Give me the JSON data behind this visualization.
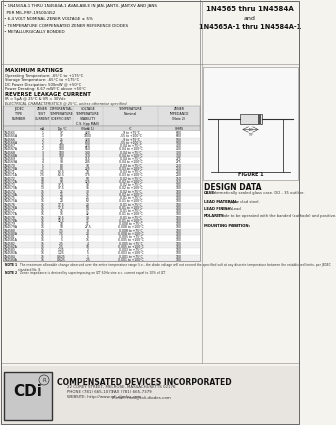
{
  "bg_color": "#f5f3ee",
  "title_left_lines": [
    "• 1N4565A-1 THRU 1N4584A-1 AVAILABLE IN JAN, JANTX, JANTXV AND JANS",
    "  PER MIL-PRF-19500/452",
    "• 6.4 VOLT NOMINAL ZENER VOLTAGE ± 5%",
    "• TEMPERATURE COMPENSATED ZENER REFERENCE DIODES",
    "• METALLURGICALLY BONDED"
  ],
  "title_right_line1": "1N4565 thru 1N4584A",
  "title_right_line2": "and",
  "title_right_line3": "1N4565A-1 thru 1N4584A-1",
  "max_ratings_title": "MAXIMUM RATINGS",
  "max_ratings_lines": [
    "Operating Temperature: -65°C to +175°C",
    "Storage Temperature: -65°C to +175°C",
    "DC Power Dissipation: 500mW @ +50°C",
    "Power Derating: 6.67 mW/°C above +50°C"
  ],
  "reverse_leakage_title": "REVERSE LEAKAGE CURRENT",
  "reverse_leakage_line": "IR = 5µA @ 25°C & VR = 30Vdc",
  "elec_char_title": "ELECTRICAL CHARACTERISTICS @ 25°C, unless otherwise specified.",
  "col_headers_row1": [
    "JEDEC\nTYPE\nNUMBER",
    "ZENER\nTEST\nCURRENT",
    "DIFFERENTIAL\nTEMPERATURE\nCOEFFICIENT",
    "VOLTAGE\nTEMPERATURE\nSTABILITY\nC.S. f(pp MAX)\n(Note 1)",
    "TEMPERATURE\nNominal",
    "ZENER IMPEDANCE\n(Note 2)"
  ],
  "col_headers_row2": [
    "",
    "mA",
    "Typ °C",
    "°C",
    "°C",
    "OHMS"
  ],
  "table_rows": [
    [
      "1N4565\n1N4565A",
      "1\n1",
      "37\n37",
      "420\n1000",
      "-9 to +75°C\n-55 to +100°C",
      "600\n600"
    ],
    [
      "1N4566\n1N4566A",
      "2\n2",
      "25\n25",
      "320\n800",
      "-9 to +75°C\n-55 to +100°C",
      "500\n500"
    ],
    [
      "1N4567\n1N4567A",
      "2\n2",
      "100\n100",
      "220\n550",
      "0.04 to +75°C\n0.04 to +100°C",
      "400\n400"
    ],
    [
      "1N4568\n1N4568A",
      "3\n3",
      "100\n100",
      "140\n350",
      "0.04 to +75°C\n0.04 to +100°C",
      "300\n300"
    ],
    [
      "1N4569\n1N4569A",
      "4\n4",
      "90\n90",
      "115\n285",
      "0.04 to +75°C\n0.04 to +100°C",
      "275\n275"
    ],
    [
      "1N4570\n1N4570A",
      "5\n5",
      "80\n80",
      "90\n225",
      "0.03 to +75°C\n0.03 to +100°C",
      "250\n250"
    ],
    [
      "1N4571\n1N4571A",
      "7.5\n7.5",
      "62.5\n62.5",
      "70\n175",
      "0.03 to +75°C\n0.03 to +100°C",
      "200\n200"
    ],
    [
      "1N4572\n1N4572A",
      "10\n10",
      "50\n50",
      "50\n125",
      "0.02 to +75°C\n0.02 to +100°C",
      "150\n150"
    ],
    [
      "1N4573\n1N4573A",
      "13\n13",
      "37.5\n37.5",
      "38\n95",
      "0.02 to +75°C\n0.02 to +100°C",
      "100\n100"
    ],
    [
      "1N4574\n1N4574A",
      "15\n15",
      "25\n25",
      "30\n75",
      "0.02 to +75°C\n0.02 to +100°C",
      "100\n100"
    ],
    [
      "1N4575\n1N4575A",
      "15\n15",
      "20\n20",
      "25\n62",
      "0.01 to +75°C\n0.01 to +100°C",
      "100\n100"
    ],
    [
      "1N4576\n1N4576A",
      "15\n15",
      "17.5\n17.5",
      "20\n50",
      "0.01 to +75°C\n0.01 to +100°C",
      "100\n100"
    ],
    [
      "1N4577\n1N4577A",
      "15\n15",
      "15\n15",
      "17\n42",
      "0.01 to +75°C\n0.01 to +100°C",
      "100\n100"
    ],
    [
      "1N4578\n1N4578A",
      "15\n15",
      "12.5\n12.5",
      "14\n35",
      "0.01 to +75°C\n0.01 to +100°C",
      "100\n100"
    ],
    [
      "1N4579\n1N4579A",
      "15\n15",
      "10\n10",
      "11\n27.5",
      "0.008 to +75°C\n0.008 to +100°C",
      "100\n100"
    ],
    [
      "1N4580\n1N4580A",
      "15\n15",
      "7.5\n7.5",
      "8\n20",
      "0.008 to +75°C\n0.008 to +100°C",
      "100\n100"
    ],
    [
      "1N4581\n1N4581A",
      "15\n15",
      "5\n5",
      "6\n15",
      "0.005 to +75°C\n0.005 to +100°C",
      "100\n100"
    ],
    [
      "1N4582\n1N4582A",
      "15\n15",
      "2.5\n2.5",
      "4\n10",
      "0.005 to +75°C\n0.005 to +100°C",
      "100\n100"
    ],
    [
      "1N4583\n1N4583A",
      "15\n15",
      "1.25\n1.25",
      "2\n5",
      "0.003 to +75°C\n0.003 to +100°C",
      "100\n100"
    ],
    [
      "1N4584\n1N4584A",
      "15\n15",
      "0.625\n0.625",
      "1\n2.5",
      "0.001 to +75°C\n0.001 to +100°C",
      "100\n100"
    ]
  ],
  "note1_label": "NOTE 1",
  "note1_text": "  The maximum allowable change observed over the entire temperature range (i.e., the diode voltage will not exceed the specified volt at any discrete temperature between the established limits, per JEDEC standard No. 8.",
  "note2_label": "NOTE 2",
  "note2_text": "  Zener impedance is derived by superimposing on IZT 60Hz sine a.c. current equal to 10% of IZT",
  "figure1_label": "FIGURE 1",
  "design_data_title": "DESIGN DATA",
  "design_data_case_label": "CASE:",
  "design_data_case_text": " Hermetically sealed glass case. DO - 35 outline.",
  "design_data_lead_label": "LEAD MATERIAL:",
  "design_data_lead_text": " Copper clad steel.",
  "design_data_finish_label": "LEAD FINISH:",
  "design_data_finish_text": " Tin / Lead",
  "design_data_polarity_label": "POLARITY:",
  "design_data_polarity_text": " Diode to be operated with the banded (cathode) and positive.",
  "design_data_mounting_label": "MOUNTING POSITION:",
  "design_data_mounting_text": " ANY",
  "footer_company": "COMPENSATED DEVICES INCORPORATED",
  "footer_address": "22 COREY STREET, MELROSE, MASSACHUSETTS 02176",
  "footer_phone": "PHONE (781) 665-1071",
  "footer_fax": "FAX (781) 665-7379",
  "footer_website": "WEBSITE: http://www.cdi-diodes.com",
  "footer_email": "E-mail: mail@cdi-diodes.com"
}
